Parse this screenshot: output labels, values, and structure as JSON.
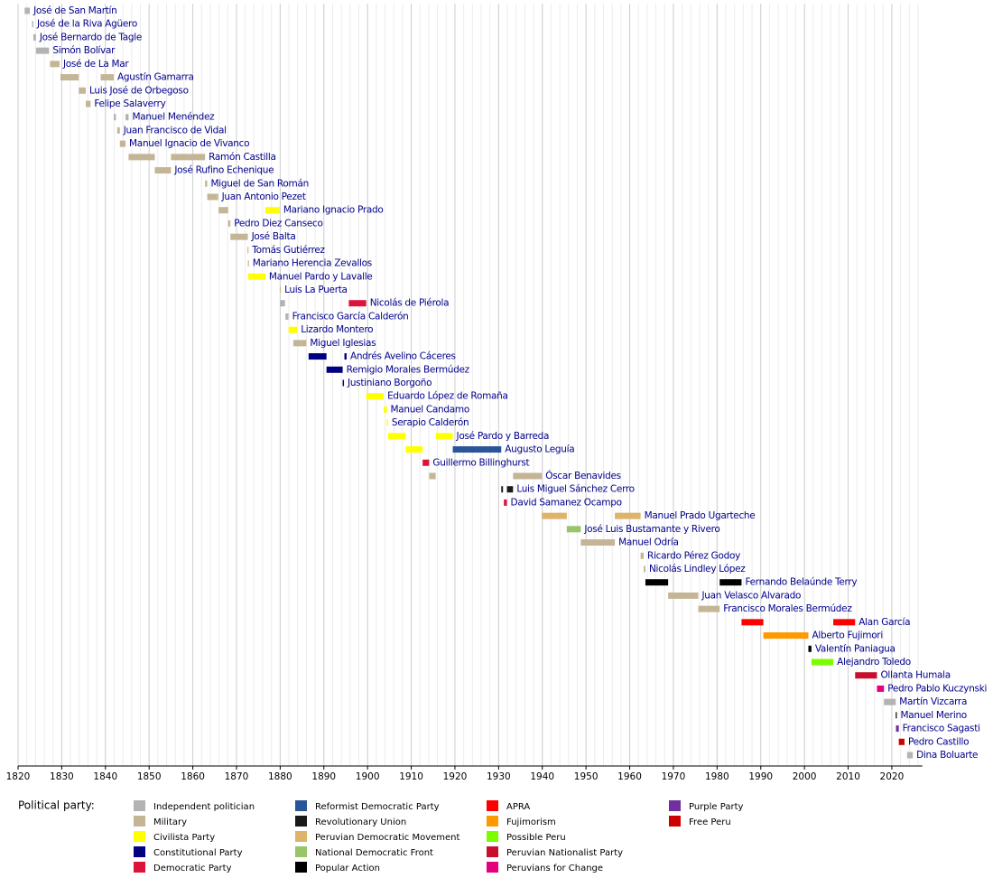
{
  "chart_data": {
    "type": "timeline",
    "legend_title": "Political party:",
    "xlim": [
      1820,
      2027
    ],
    "xticks": [
      1820,
      1830,
      1840,
      1850,
      1860,
      1870,
      1880,
      1890,
      1900,
      1910,
      1920,
      1930,
      1940,
      1950,
      1960,
      1970,
      1980,
      1990,
      2000,
      2010,
      2020
    ],
    "grid": true,
    "parties": [
      {
        "name": "Independent politician",
        "color": "#b3b3b3"
      },
      {
        "name": "Military",
        "color": "#c4b596"
      },
      {
        "name": "Civilista Party",
        "color": "#ffff00"
      },
      {
        "name": "Constitutional Party",
        "color": "#000080"
      },
      {
        "name": "Democratic Party",
        "color": "#dc143c"
      },
      {
        "name": "Reformist Democratic Party",
        "color": "#2a5599"
      },
      {
        "name": "Revolutionary Union",
        "color": "#1a1a1a"
      },
      {
        "name": "Peruvian Democratic Movement",
        "color": "#deb36a"
      },
      {
        "name": "National Democratic Front",
        "color": "#99c46a"
      },
      {
        "name": "Popular Action",
        "color": "#000000"
      },
      {
        "name": "APRA",
        "color": "#ff0000"
      },
      {
        "name": "Fujimorism",
        "color": "#ff9900"
      },
      {
        "name": "Possible Peru",
        "color": "#7cfc00"
      },
      {
        "name": "Peruvian Nationalist Party",
        "color": "#c8102e"
      },
      {
        "name": "Peruvians for Change",
        "color": "#e6007e"
      },
      {
        "name": "Purple Party",
        "color": "#7030a0"
      },
      {
        "name": "Free Peru",
        "color": "#cc0000"
      }
    ],
    "presidents": [
      {
        "name": "José de San Martín",
        "terms": [
          {
            "start": 1821.5,
            "end": 1822.7,
            "party": 0
          }
        ]
      },
      {
        "name": "José de la Riva Agüero",
        "terms": [
          {
            "start": 1823.2,
            "end": 1823.5,
            "party": 0
          }
        ]
      },
      {
        "name": "José Bernardo de Tagle",
        "terms": [
          {
            "start": 1823.5,
            "end": 1824.1,
            "party": 0
          }
        ]
      },
      {
        "name": "Simón Bolívar",
        "terms": [
          {
            "start": 1824.1,
            "end": 1827.1,
            "party": 0
          }
        ]
      },
      {
        "name": "José de La Mar",
        "terms": [
          {
            "start": 1827.3,
            "end": 1829.5,
            "party": 1
          }
        ]
      },
      {
        "name": "Agustín Gamarra",
        "terms": [
          {
            "start": 1829.7,
            "end": 1833.9,
            "party": 1
          },
          {
            "start": 1838.9,
            "end": 1841.9,
            "party": 1
          }
        ]
      },
      {
        "name": "Luis José de Orbegoso",
        "terms": [
          {
            "start": 1833.9,
            "end": 1835.5,
            "party": 1
          }
        ]
      },
      {
        "name": "Felipe Salaverry",
        "terms": [
          {
            "start": 1835.5,
            "end": 1836.6,
            "party": 1
          }
        ]
      },
      {
        "name": "Manuel Menéndez",
        "terms": [
          {
            "start": 1841.9,
            "end": 1842.4,
            "party": 0
          },
          {
            "start": 1844.6,
            "end": 1845.3,
            "party": 0
          }
        ]
      },
      {
        "name": "Juan Francisco de Vidal",
        "terms": [
          {
            "start": 1842.7,
            "end": 1843.3,
            "party": 1
          }
        ]
      },
      {
        "name": "Manuel Ignacio de Vivanco",
        "terms": [
          {
            "start": 1843.3,
            "end": 1844.6,
            "party": 1
          }
        ]
      },
      {
        "name": "Ramón Castilla",
        "terms": [
          {
            "start": 1845.3,
            "end": 1851.3,
            "party": 1
          },
          {
            "start": 1855,
            "end": 1862.8,
            "party": 1
          }
        ]
      },
      {
        "name": "José Rufino Echenique",
        "terms": [
          {
            "start": 1851.3,
            "end": 1855,
            "party": 1
          }
        ]
      },
      {
        "name": "Miguel de San Román",
        "terms": [
          {
            "start": 1862.8,
            "end": 1863.3,
            "party": 1
          }
        ]
      },
      {
        "name": "Juan Antonio Pezet",
        "terms": [
          {
            "start": 1863.3,
            "end": 1865.8,
            "party": 1
          }
        ]
      },
      {
        "name": "Mariano Ignacio Prado",
        "terms": [
          {
            "start": 1865.9,
            "end": 1868.1,
            "party": 1
          },
          {
            "start": 1876.6,
            "end": 1879.9,
            "party": 2
          }
        ]
      },
      {
        "name": "Pedro Diez Canseco",
        "terms": [
          {
            "start": 1868.1,
            "end": 1868.6,
            "party": 1
          }
        ]
      },
      {
        "name": "José Balta",
        "terms": [
          {
            "start": 1868.6,
            "end": 1872.6,
            "party": 1
          }
        ]
      },
      {
        "name": "Tomás Gutiérrez",
        "terms": [
          {
            "start": 1872.5,
            "end": 1872.6,
            "party": 1
          }
        ]
      },
      {
        "name": "Mariano Herencia Zevallos",
        "terms": [
          {
            "start": 1872.6,
            "end": 1872.7,
            "party": 1
          }
        ]
      },
      {
        "name": "Manuel Pardo y Lavalle",
        "terms": [
          {
            "start": 1872.7,
            "end": 1876.6,
            "party": 2
          }
        ]
      },
      {
        "name": "Luis La Puerta",
        "terms": [
          {
            "start": 1879.9,
            "end": 1879.97,
            "party": 1
          }
        ]
      },
      {
        "name": "Nicolás de Piérola",
        "terms": [
          {
            "start": 1879.97,
            "end": 1881.1,
            "party": 0
          },
          {
            "start": 1895.7,
            "end": 1899.7,
            "party": 4
          }
        ]
      },
      {
        "name": "Francisco García Calderón",
        "terms": [
          {
            "start": 1881.2,
            "end": 1881.9,
            "party": 0
          }
        ]
      },
      {
        "name": "Lizardo Montero",
        "terms": [
          {
            "start": 1881.9,
            "end": 1883.9,
            "party": 2
          }
        ]
      },
      {
        "name": "Miguel Iglesias",
        "terms": [
          {
            "start": 1883,
            "end": 1886,
            "party": 1
          }
        ]
      },
      {
        "name": "Andrés Avelino Cáceres",
        "terms": [
          {
            "start": 1886.5,
            "end": 1890.6,
            "party": 3
          },
          {
            "start": 1894.7,
            "end": 1895.2,
            "party": 3
          }
        ]
      },
      {
        "name": "Remigio Morales Bermúdez",
        "terms": [
          {
            "start": 1890.6,
            "end": 1894.3,
            "party": 3
          }
        ]
      },
      {
        "name": "Justiniano Borgoño",
        "terms": [
          {
            "start": 1894.3,
            "end": 1894.6,
            "party": 3
          }
        ]
      },
      {
        "name": "Eduardo López de Romaña",
        "terms": [
          {
            "start": 1899.7,
            "end": 1903.7,
            "party": 2
          }
        ]
      },
      {
        "name": "Manuel Candamo",
        "terms": [
          {
            "start": 1903.7,
            "end": 1904.4,
            "party": 2
          }
        ]
      },
      {
        "name": "Serapio Calderón",
        "terms": [
          {
            "start": 1904.4,
            "end": 1904.7,
            "party": 2
          }
        ]
      },
      {
        "name": "José Pardo y Barreda",
        "terms": [
          {
            "start": 1904.7,
            "end": 1908.7,
            "party": 2
          },
          {
            "start": 1915.6,
            "end": 1919.5,
            "party": 2
          }
        ]
      },
      {
        "name": "Augusto Leguía",
        "terms": [
          {
            "start": 1908.7,
            "end": 1912.6,
            "party": 2
          },
          {
            "start": 1919.5,
            "end": 1930.6,
            "party": 5
          }
        ]
      },
      {
        "name": "Guillermo Billinghurst",
        "terms": [
          {
            "start": 1912.6,
            "end": 1914.1,
            "party": 4
          }
        ]
      },
      {
        "name": "Óscar Benavides",
        "terms": [
          {
            "start": 1914.1,
            "end": 1915.6,
            "party": 1
          },
          {
            "start": 1933.3,
            "end": 1939.9,
            "party": 1
          }
        ]
      },
      {
        "name": "Luis Miguel Sánchez Cerro",
        "terms": [
          {
            "start": 1930.6,
            "end": 1931,
            "party": 6
          },
          {
            "start": 1931.9,
            "end": 1933.3,
            "party": 6
          }
        ]
      },
      {
        "name": "David Samanez Ocampo",
        "terms": [
          {
            "start": 1931.2,
            "end": 1931.9,
            "party": 4
          }
        ]
      },
      {
        "name": "Manuel Prado Ugarteche",
        "terms": [
          {
            "start": 1939.9,
            "end": 1945.6,
            "party": 7
          },
          {
            "start": 1956.6,
            "end": 1962.5,
            "party": 7
          }
        ]
      },
      {
        "name": "José Luis Bustamante y Rivero",
        "terms": [
          {
            "start": 1945.6,
            "end": 1948.8,
            "party": 8
          }
        ]
      },
      {
        "name": "Manuel Odría",
        "terms": [
          {
            "start": 1948.8,
            "end": 1956.6,
            "party": 1
          }
        ]
      },
      {
        "name": "Ricardo Pérez Godoy",
        "terms": [
          {
            "start": 1962.5,
            "end": 1963.2,
            "party": 1
          }
        ]
      },
      {
        "name": "Nicolás Lindley López",
        "terms": [
          {
            "start": 1963.2,
            "end": 1963.6,
            "party": 1
          }
        ]
      },
      {
        "name": "Fernando Belaúnde Terry",
        "terms": [
          {
            "start": 1963.6,
            "end": 1968.8,
            "party": 9
          },
          {
            "start": 1980.6,
            "end": 1985.6,
            "party": 9
          }
        ]
      },
      {
        "name": "Juan Velasco Alvarado",
        "terms": [
          {
            "start": 1968.8,
            "end": 1975.7,
            "party": 1
          }
        ]
      },
      {
        "name": "Francisco Morales Bermúdez",
        "terms": [
          {
            "start": 1975.7,
            "end": 1980.6,
            "party": 1
          }
        ]
      },
      {
        "name": "Alan García",
        "terms": [
          {
            "start": 1985.6,
            "end": 1990.6,
            "party": 10
          },
          {
            "start": 2006.6,
            "end": 2011.6,
            "party": 10
          }
        ]
      },
      {
        "name": "Alberto Fujimori",
        "terms": [
          {
            "start": 1990.6,
            "end": 2000.9,
            "party": 11
          }
        ]
      },
      {
        "name": "Valentín Paniagua",
        "terms": [
          {
            "start": 2000.9,
            "end": 2001.6,
            "party": 9
          }
        ]
      },
      {
        "name": "Alejandro Toledo",
        "terms": [
          {
            "start": 2001.6,
            "end": 2006.6,
            "party": 12
          }
        ]
      },
      {
        "name": "Ollanta Humala",
        "terms": [
          {
            "start": 2011.6,
            "end": 2016.6,
            "party": 13
          }
        ]
      },
      {
        "name": "Pedro Pablo Kuczynski",
        "terms": [
          {
            "start": 2016.6,
            "end": 2018.2,
            "party": 14
          }
        ]
      },
      {
        "name": "Martín Vizcarra",
        "terms": [
          {
            "start": 2018.2,
            "end": 2020.9,
            "party": 0
          }
        ]
      },
      {
        "name": "Manuel Merino",
        "terms": [
          {
            "start": 2020.9,
            "end": 2020.95,
            "party": 9
          }
        ]
      },
      {
        "name": "Francisco Sagasti",
        "terms": [
          {
            "start": 2020.95,
            "end": 2021.6,
            "party": 15
          }
        ]
      },
      {
        "name": "Pedro Castillo",
        "terms": [
          {
            "start": 2021.6,
            "end": 2022.9,
            "party": 16
          }
        ]
      },
      {
        "name": "Dina Boluarte",
        "terms": [
          {
            "start": 2023.5,
            "end": 2024.8,
            "party": 0
          }
        ]
      }
    ]
  }
}
